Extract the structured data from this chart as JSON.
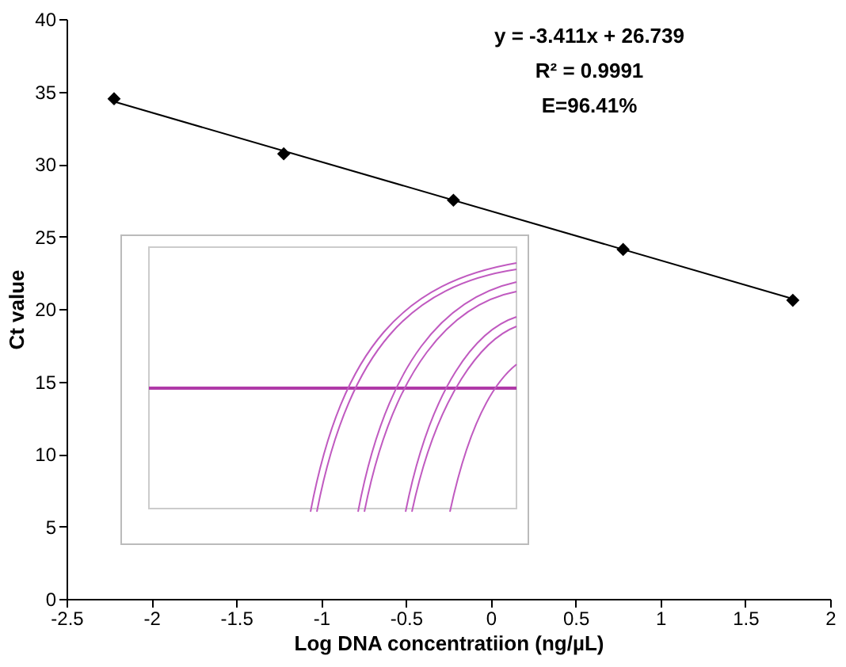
{
  "chart_data": {
    "type": "scatter",
    "xlabel": "Log DNA concentratiion (ng/µL)",
    "ylabel": "Ct value",
    "x": [
      -2.22,
      -1.22,
      -0.22,
      0.78,
      1.78
    ],
    "series": [
      {
        "color": "#000000",
        "values": [
          34.5,
          30.7,
          27.5,
          24.1,
          20.6
        ],
        "marker": "diamond"
      },
      {
        "type": "line",
        "color": "#000000",
        "x": [
          -2.22,
          1.78
        ],
        "values": [
          34.3,
          20.7
        ]
      }
    ],
    "xlim": [
      -2.5,
      2
    ],
    "xticks": [
      -2.5,
      -2,
      -1.5,
      -1,
      -0.5,
      0,
      0.5,
      1,
      1.5,
      2
    ],
    "ylim": [
      0,
      40
    ],
    "yticks": [
      0,
      5,
      10,
      15,
      20,
      25,
      30,
      35,
      40
    ],
    "grid": false,
    "annotations": [
      "y = -3.411x + 26.739",
      "R² = 0.9991",
      "E=96.41%"
    ]
  }
}
